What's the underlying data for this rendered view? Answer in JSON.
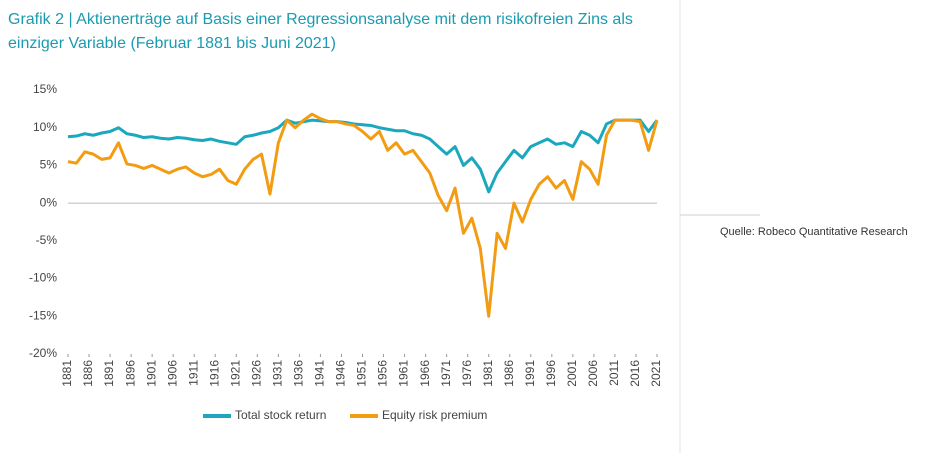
{
  "chart_data": {
    "type": "line",
    "title": "Grafik 2 | Aktienerträge auf Basis einer Regressionsanalyse mit dem risikofreien Zins als einziger Variable (Februar 1881 bis Juni 2021)",
    "source": "Quelle: Robeco Quantitative Research",
    "x": [
      1881,
      1883,
      1885,
      1887,
      1889,
      1891,
      1893,
      1895,
      1897,
      1899,
      1901,
      1903,
      1905,
      1907,
      1909,
      1911,
      1913,
      1915,
      1917,
      1919,
      1921,
      1923,
      1925,
      1927,
      1929,
      1931,
      1933,
      1935,
      1937,
      1939,
      1941,
      1943,
      1945,
      1947,
      1949,
      1951,
      1953,
      1955,
      1957,
      1959,
      1961,
      1963,
      1965,
      1967,
      1969,
      1971,
      1973,
      1975,
      1977,
      1979,
      1981,
      1983,
      1985,
      1987,
      1989,
      1991,
      1993,
      1995,
      1997,
      1999,
      2001,
      2003,
      2005,
      2007,
      2009,
      2011,
      2013,
      2015,
      2017,
      2019,
      2021
    ],
    "series": [
      {
        "name": "Total stock return",
        "color": "#1ba8be",
        "values": [
          8.8,
          8.9,
          9.2,
          9.0,
          9.3,
          9.5,
          10.0,
          9.2,
          9.0,
          8.7,
          8.8,
          8.6,
          8.5,
          8.7,
          8.6,
          8.4,
          8.3,
          8.5,
          8.2,
          8.0,
          7.8,
          8.8,
          9.0,
          9.3,
          9.5,
          10.0,
          11.0,
          10.6,
          10.8,
          11.0,
          10.9,
          10.8,
          10.8,
          10.7,
          10.5,
          10.4,
          10.3,
          10.0,
          9.8,
          9.6,
          9.6,
          9.2,
          9.0,
          8.5,
          7.5,
          6.5,
          7.5,
          5.0,
          6.0,
          4.5,
          1.5,
          4.0,
          5.5,
          7.0,
          6.0,
          7.5,
          8.0,
          8.5,
          7.8,
          8.0,
          7.5,
          9.5,
          9.0,
          8.0,
          10.5,
          11.0,
          11.0,
          11.0,
          11.0,
          9.5,
          11.0
        ]
      },
      {
        "name": "Equity risk premium",
        "color": "#f39c12",
        "values": [
          5.5,
          5.3,
          6.8,
          6.5,
          5.8,
          6.0,
          8.0,
          5.2,
          5.0,
          4.6,
          5.0,
          4.5,
          4.0,
          4.5,
          4.8,
          4.0,
          3.5,
          3.8,
          4.5,
          3.0,
          2.5,
          4.5,
          5.8,
          6.5,
          1.2,
          8.0,
          11.0,
          10.0,
          11.0,
          11.8,
          11.2,
          10.8,
          10.8,
          10.5,
          10.3,
          9.5,
          8.5,
          9.5,
          7.0,
          8.0,
          6.5,
          7.0,
          5.5,
          4.0,
          1.0,
          -1.0,
          2.0,
          -4.0,
          -2.0,
          -6.0,
          -15.0,
          -4.0,
          -6.0,
          0.0,
          -2.5,
          0.5,
          2.5,
          3.5,
          2.0,
          3.0,
          0.5,
          5.5,
          4.5,
          2.5,
          9.0,
          11.0,
          11.0,
          11.0,
          10.8,
          7.0,
          11.0
        ]
      }
    ],
    "xlim": [
      1881,
      2021
    ],
    "xticks": [
      1881,
      1886,
      1891,
      1896,
      1901,
      1906,
      1911,
      1916,
      1921,
      1926,
      1931,
      1936,
      1941,
      1946,
      1951,
      1956,
      1961,
      1966,
      1971,
      1976,
      1981,
      1986,
      1991,
      1996,
      2001,
      2006,
      2011,
      2016,
      2021
    ],
    "ylim": [
      -20,
      15
    ],
    "yticks": [
      {
        "value": -20,
        "label": "-20%"
      },
      {
        "value": -15,
        "label": "-15%"
      },
      {
        "value": -10,
        "label": "-10%"
      },
      {
        "value": -5,
        "label": "-5%"
      },
      {
        "value": 0,
        "label": "0%"
      },
      {
        "value": 5,
        "label": "5%"
      },
      {
        "value": 10,
        "label": "10%"
      },
      {
        "value": 15,
        "label": "15%"
      }
    ]
  }
}
